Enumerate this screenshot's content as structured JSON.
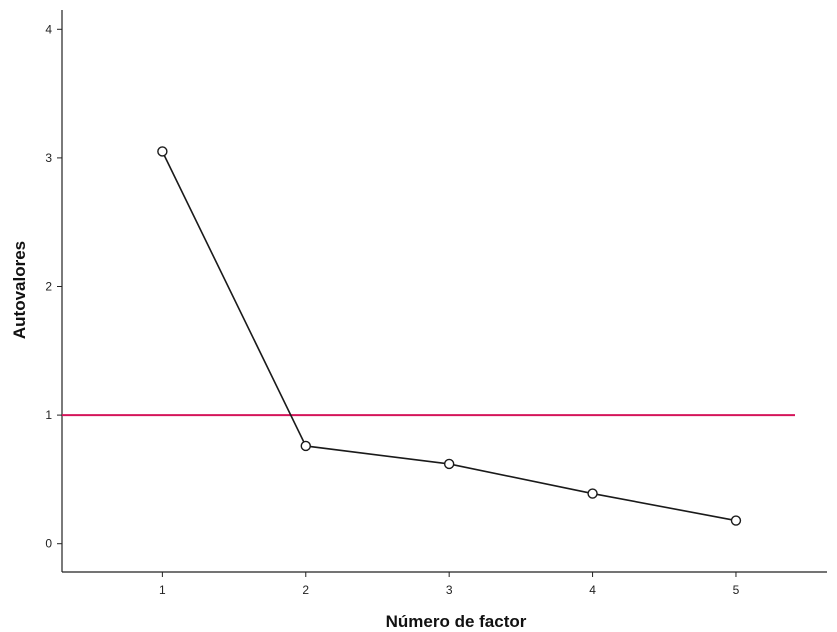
{
  "chart_data": {
    "type": "line",
    "title": "",
    "xlabel": "Número de factor",
    "ylabel": "Autovalores",
    "x": [
      1,
      2,
      3,
      4,
      5
    ],
    "series": [
      {
        "values": [
          3.05,
          0.76,
          0.62,
          0.39,
          0.18
        ],
        "color": "#1a1a1a",
        "marker": "open-circle"
      }
    ],
    "reference_line": {
      "y": 1,
      "color": "#d4145a"
    },
    "xlim": [
      0.3,
      5.6
    ],
    "ylim": [
      -0.22,
      4.15
    ],
    "xticks": [
      "1",
      "2",
      "3",
      "4",
      "5"
    ],
    "yticks": [
      "0",
      "1",
      "2",
      "3",
      "4"
    ],
    "grid": false
  }
}
